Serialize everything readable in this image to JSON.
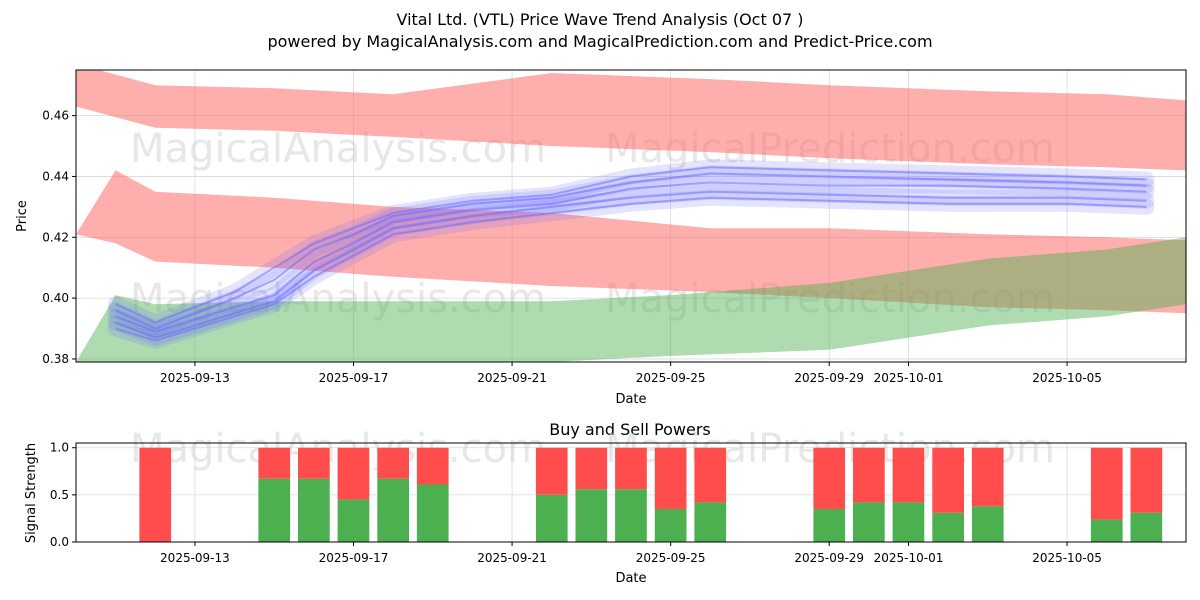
{
  "colors": {
    "upper_band": "#ff6b6b",
    "lower_band": "#4caf50",
    "wave": "#6b6bff",
    "buy": "#4caf50",
    "sell": "#ff4d4d"
  },
  "chart_data": [
    {
      "type": "area",
      "title": "Vital Ltd. (VTL) Price Wave Trend Analysis (Oct 07 )",
      "subtitle": "powered by MagicalAnalysis.com and MagicalPrediction.com and Predict-Price.com",
      "xlabel": "Date",
      "ylabel": "Price",
      "ylim": [
        0.379,
        0.475
      ],
      "xlim": [
        "2025-09-10",
        "2025-10-08"
      ],
      "grid": true,
      "x_ticks": [
        "2025-09-13",
        "2025-09-17",
        "2025-09-21",
        "2025-09-25",
        "2025-09-29",
        "2025-10-01",
        "2025-10-05"
      ],
      "y_ticks": [
        0.38,
        0.4,
        0.42,
        0.44,
        0.46
      ],
      "watermarks": [
        "MagicalAnalysis.com",
        "MagicalPrediction.com",
        "MagicalAnalysis.com",
        "MagicalPrediction.com"
      ],
      "upper_band": {
        "x": [
          "2025-09-10",
          "2025-09-12",
          "2025-09-15",
          "2025-09-18",
          "2025-09-22",
          "2025-09-26",
          "2025-09-29",
          "2025-10-03",
          "2025-10-06",
          "2025-10-08"
        ],
        "top": [
          0.477,
          0.47,
          0.469,
          0.467,
          0.474,
          0.472,
          0.47,
          0.468,
          0.467,
          0.465
        ],
        "bottom": [
          0.463,
          0.456,
          0.455,
          0.453,
          0.45,
          0.448,
          0.446,
          0.444,
          0.443,
          0.442
        ]
      },
      "middle_band": {
        "x": [
          "2025-09-10",
          "2025-09-11",
          "2025-09-12",
          "2025-09-15",
          "2025-09-18",
          "2025-09-22",
          "2025-09-26",
          "2025-09-29",
          "2025-10-03",
          "2025-10-06",
          "2025-10-08"
        ],
        "top": [
          0.421,
          0.442,
          0.435,
          0.433,
          0.43,
          0.428,
          0.423,
          0.423,
          0.421,
          0.42,
          0.419
        ],
        "bottom": [
          0.421,
          0.418,
          0.412,
          0.41,
          0.407,
          0.404,
          0.402,
          0.4,
          0.397,
          0.396,
          0.395
        ]
      },
      "lower_band": {
        "x": [
          "2025-09-10",
          "2025-09-11",
          "2025-09-12",
          "2025-09-15",
          "2025-09-18",
          "2025-09-22",
          "2025-09-25",
          "2025-09-29",
          "2025-10-03",
          "2025-10-06",
          "2025-10-08"
        ],
        "top": [
          0.379,
          0.401,
          0.398,
          0.399,
          0.399,
          0.399,
          0.401,
          0.405,
          0.413,
          0.416,
          0.42
        ],
        "bottom": [
          0.379,
          0.379,
          0.379,
          0.379,
          0.379,
          0.379,
          0.381,
          0.383,
          0.391,
          0.394,
          0.398
        ]
      },
      "wave_lines": [
        {
          "x": [
            "2025-09-11",
            "2025-09-12",
            "2025-09-13",
            "2025-09-14",
            "2025-09-15",
            "2025-09-16",
            "2025-09-17",
            "2025-09-18",
            "2025-09-20",
            "2025-09-22",
            "2025-09-24",
            "2025-09-26",
            "2025-09-29",
            "2025-10-02",
            "2025-10-05",
            "2025-10-07"
          ],
          "y": [
            0.394,
            0.389,
            0.393,
            0.397,
            0.401,
            0.412,
            0.418,
            0.425,
            0.429,
            0.431,
            0.436,
            0.438,
            0.437,
            0.437,
            0.436,
            0.435
          ]
        },
        {
          "x": [
            "2025-09-11",
            "2025-09-12",
            "2025-09-13",
            "2025-09-14",
            "2025-09-15",
            "2025-09-16",
            "2025-09-17",
            "2025-09-18",
            "2025-09-20",
            "2025-09-22",
            "2025-09-24",
            "2025-09-26",
            "2025-09-29",
            "2025-10-02",
            "2025-10-05",
            "2025-10-07"
          ],
          "y": [
            0.392,
            0.387,
            0.391,
            0.395,
            0.399,
            0.409,
            0.416,
            0.423,
            0.427,
            0.43,
            0.433,
            0.435,
            0.434,
            0.433,
            0.433,
            0.432
          ]
        },
        {
          "x": [
            "2025-09-11",
            "2025-09-12",
            "2025-09-13",
            "2025-09-14",
            "2025-09-15",
            "2025-09-16",
            "2025-09-17",
            "2025-09-18",
            "2025-09-20",
            "2025-09-22",
            "2025-09-24",
            "2025-09-26",
            "2025-09-29",
            "2025-10-02",
            "2025-10-05",
            "2025-10-07"
          ],
          "y": [
            0.396,
            0.39,
            0.395,
            0.4,
            0.406,
            0.416,
            0.421,
            0.427,
            0.431,
            0.433,
            0.438,
            0.441,
            0.44,
            0.439,
            0.438,
            0.437
          ]
        },
        {
          "x": [
            "2025-09-11",
            "2025-09-12",
            "2025-09-13",
            "2025-09-14",
            "2025-09-15",
            "2025-09-16",
            "2025-09-17",
            "2025-09-18",
            "2025-09-20",
            "2025-09-22",
            "2025-09-24",
            "2025-09-26",
            "2025-09-29",
            "2025-10-02",
            "2025-10-05",
            "2025-10-07"
          ],
          "y": [
            0.39,
            0.386,
            0.39,
            0.394,
            0.398,
            0.407,
            0.414,
            0.421,
            0.425,
            0.428,
            0.431,
            0.433,
            0.432,
            0.431,
            0.431,
            0.43
          ]
        },
        {
          "x": [
            "2025-09-11",
            "2025-09-12",
            "2025-09-13",
            "2025-09-14",
            "2025-09-15",
            "2025-09-16",
            "2025-09-17",
            "2025-09-18",
            "2025-09-20",
            "2025-09-22",
            "2025-09-24",
            "2025-09-26",
            "2025-09-29",
            "2025-10-02",
            "2025-10-05",
            "2025-10-07"
          ],
          "y": [
            0.398,
            0.392,
            0.397,
            0.402,
            0.41,
            0.418,
            0.423,
            0.428,
            0.432,
            0.434,
            0.44,
            0.443,
            0.442,
            0.441,
            0.44,
            0.439
          ]
        }
      ]
    },
    {
      "type": "bar",
      "title": "Buy and Sell Powers",
      "xlabel": "Date",
      "ylabel": "Signal Strength",
      "ylim": [
        0,
        1.05
      ],
      "xlim": [
        "2025-09-10",
        "2025-10-08"
      ],
      "grid": true,
      "x_ticks": [
        "2025-09-13",
        "2025-09-17",
        "2025-09-21",
        "2025-09-25",
        "2025-09-29",
        "2025-10-01",
        "2025-10-05"
      ],
      "y_ticks": [
        0.0,
        0.5,
        1.0
      ],
      "y_tick_labels": [
        "0.0",
        "0.5",
        "1.0"
      ],
      "categories": [
        "2025-09-12",
        "2025-09-15",
        "2025-09-16",
        "2025-09-17",
        "2025-09-18",
        "2025-09-19",
        "2025-09-22",
        "2025-09-23",
        "2025-09-24",
        "2025-09-25",
        "2025-09-26",
        "2025-09-29",
        "2025-09-30",
        "2025-10-01",
        "2025-10-02",
        "2025-10-03",
        "2025-10-06",
        "2025-10-07"
      ],
      "series": [
        {
          "name": "Buy",
          "values": [
            0.0,
            0.67,
            0.67,
            0.45,
            0.67,
            0.61,
            0.5,
            0.56,
            0.56,
            0.35,
            0.42,
            0.35,
            0.42,
            0.42,
            0.31,
            0.38,
            0.24,
            0.31
          ]
        },
        {
          "name": "Sell",
          "values": [
            1.0,
            0.33,
            0.33,
            0.55,
            0.33,
            0.39,
            0.5,
            0.44,
            0.44,
            0.65,
            0.58,
            0.65,
            0.58,
            0.58,
            0.69,
            0.62,
            0.76,
            0.69
          ]
        }
      ],
      "watermarks": [
        "MagicalAnalysis.com",
        "MagicalPrediction.com"
      ]
    }
  ]
}
